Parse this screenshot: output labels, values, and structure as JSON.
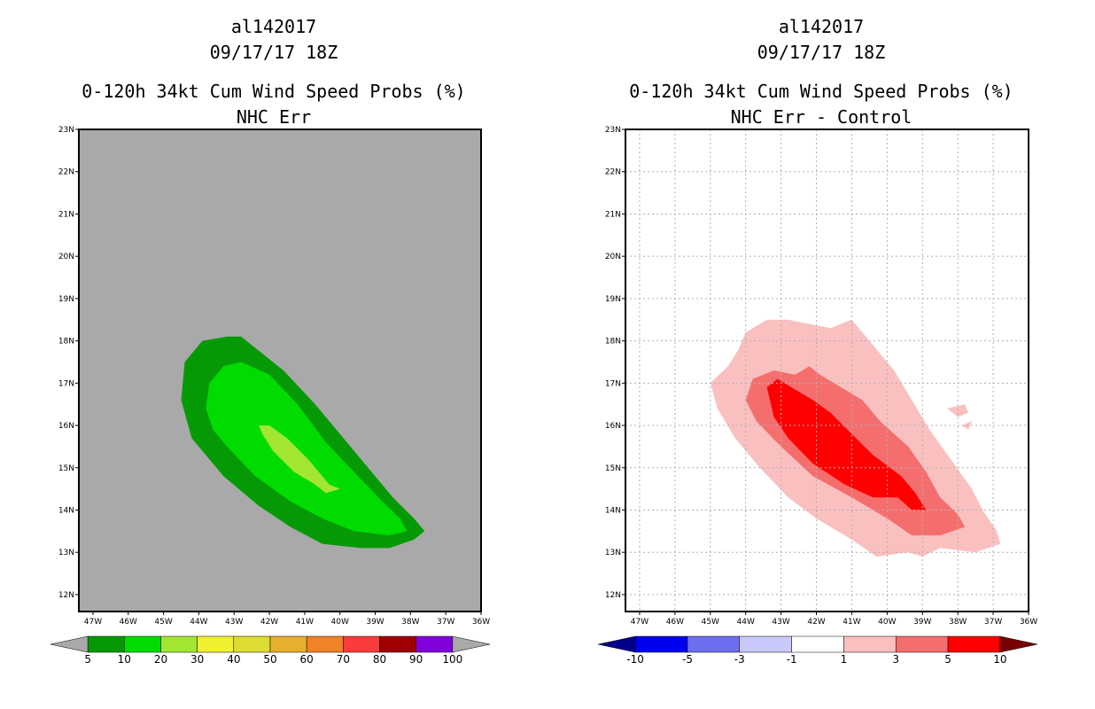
{
  "chart_data": [
    {
      "type": "filled-contour-map",
      "storm_id": "al142017",
      "datetime": "09/17/17 18Z",
      "title": "0-120h 34kt Cum Wind Speed Probs (%)",
      "subtitle": "NHC Err",
      "x_ticks": [
        "47W",
        "46W",
        "45W",
        "44W",
        "43W",
        "42W",
        "41W",
        "40W",
        "39W",
        "38W",
        "37W",
        "36W"
      ],
      "y_ticks": [
        "23N",
        "22N",
        "21N",
        "20N",
        "19N",
        "18N",
        "17N",
        "16N",
        "15N",
        "14N",
        "13N",
        "12N"
      ],
      "lon_range": [
        -47.4,
        -36.0
      ],
      "lat_range": [
        11.6,
        23.0
      ],
      "gridlines": false,
      "background_color": "#a9a9a9",
      "levels": [
        "5",
        "10",
        "20",
        "30",
        "40",
        "50",
        "60",
        "70",
        "80",
        "90",
        "100"
      ],
      "level_colors": [
        "#a9a9a9",
        "#059a05",
        "#00dc00",
        "#a2e632",
        "#f0f032",
        "#dcdc32",
        "#e6af2d",
        "#f08228",
        "#fa3c3c",
        "#a00000",
        "#8200dc",
        "#a9a9a9"
      ],
      "contours": [
        {
          "level": 5,
          "polygon": [
            [
              -44.5,
              16.6
            ],
            [
              -44.4,
              17.5
            ],
            [
              -43.9,
              18.0
            ],
            [
              -43.2,
              18.1
            ],
            [
              -42.8,
              18.1
            ],
            [
              -41.6,
              17.3
            ],
            [
              -40.7,
              16.5
            ],
            [
              -39.6,
              15.4
            ],
            [
              -38.5,
              14.3
            ],
            [
              -37.9,
              13.8
            ],
            [
              -37.6,
              13.5
            ],
            [
              -37.9,
              13.3
            ],
            [
              -38.6,
              13.1
            ],
            [
              -39.4,
              13.1
            ],
            [
              -40.5,
              13.2
            ],
            [
              -41.4,
              13.6
            ],
            [
              -42.3,
              14.1
            ],
            [
              -43.3,
              14.8
            ],
            [
              -44.2,
              15.7
            ]
          ]
        },
        {
          "level": 10,
          "polygon": [
            [
              -43.8,
              16.4
            ],
            [
              -43.7,
              17.0
            ],
            [
              -43.3,
              17.4
            ],
            [
              -42.8,
              17.5
            ],
            [
              -42.0,
              17.2
            ],
            [
              -41.2,
              16.5
            ],
            [
              -40.4,
              15.6
            ],
            [
              -39.6,
              14.9
            ],
            [
              -38.8,
              14.2
            ],
            [
              -38.3,
              13.8
            ],
            [
              -38.1,
              13.5
            ],
            [
              -38.6,
              13.4
            ],
            [
              -39.6,
              13.5
            ],
            [
              -40.5,
              13.8
            ],
            [
              -41.4,
              14.2
            ],
            [
              -42.4,
              14.8
            ],
            [
              -43.2,
              15.5
            ],
            [
              -43.6,
              15.9
            ]
          ]
        },
        {
          "level": 20,
          "polygon": [
            [
              -42.3,
              16.0
            ],
            [
              -42.0,
              16.0
            ],
            [
              -41.5,
              15.7
            ],
            [
              -40.9,
              15.2
            ],
            [
              -40.6,
              14.9
            ],
            [
              -40.3,
              14.6
            ],
            [
              -40.0,
              14.5
            ],
            [
              -40.4,
              14.4
            ],
            [
              -40.7,
              14.6
            ],
            [
              -41.3,
              14.9
            ],
            [
              -41.9,
              15.4
            ],
            [
              -42.2,
              15.8
            ]
          ]
        }
      ],
      "colorbar_labels": [
        "5",
        "10",
        "20",
        "30",
        "40",
        "50",
        "60",
        "70",
        "80",
        "90",
        "100"
      ]
    },
    {
      "type": "filled-contour-map",
      "storm_id": "al142017",
      "datetime": "09/17/17 18Z",
      "title": "0-120h 34kt Cum Wind Speed Probs (%)",
      "subtitle": "NHC Err - Control",
      "x_ticks": [
        "47W",
        "46W",
        "45W",
        "44W",
        "43W",
        "42W",
        "41W",
        "40W",
        "39W",
        "38W",
        "37W",
        "36W"
      ],
      "y_ticks": [
        "23N",
        "22N",
        "21N",
        "20N",
        "19N",
        "18N",
        "17N",
        "16N",
        "15N",
        "14N",
        "13N",
        "12N"
      ],
      "lon_range": [
        -47.4,
        -36.0
      ],
      "lat_range": [
        11.6,
        23.0
      ],
      "gridlines": true,
      "background_color": "#ffffff",
      "levels": [
        "-10",
        "-5",
        "-3",
        "-1",
        "1",
        "3",
        "5",
        "10"
      ],
      "level_colors": [
        "#00008c",
        "#0000f0",
        "#6e6ef0",
        "#c8c8fa",
        "#ffffff",
        "#fac0c0",
        "#f56e6e",
        "#ff0000",
        "#780000"
      ],
      "contours": [
        {
          "level": 1,
          "polygon": [
            [
              -45.0,
              17.0
            ],
            [
              -44.5,
              17.4
            ],
            [
              -44.2,
              17.8
            ],
            [
              -44.0,
              18.2
            ],
            [
              -43.4,
              18.5
            ],
            [
              -42.8,
              18.5
            ],
            [
              -41.6,
              18.3
            ],
            [
              -41.0,
              18.5
            ],
            [
              -40.5,
              18.0
            ],
            [
              -39.8,
              17.3
            ],
            [
              -39.3,
              16.6
            ],
            [
              -38.8,
              15.9
            ],
            [
              -38.2,
              15.2
            ],
            [
              -37.6,
              14.5
            ],
            [
              -37.3,
              14.0
            ],
            [
              -36.9,
              13.5
            ],
            [
              -36.8,
              13.2
            ],
            [
              -37.5,
              13.0
            ],
            [
              -38.5,
              13.1
            ],
            [
              -39.0,
              12.9
            ],
            [
              -39.4,
              13.0
            ],
            [
              -40.3,
              12.9
            ],
            [
              -41.0,
              13.3
            ],
            [
              -42.0,
              13.8
            ],
            [
              -42.8,
              14.3
            ],
            [
              -43.6,
              15.0
            ],
            [
              -44.3,
              15.7
            ],
            [
              -44.8,
              16.4
            ]
          ]
        },
        {
          "level": 1,
          "polygon": [
            [
              -38.3,
              16.4
            ],
            [
              -37.8,
              16.5
            ],
            [
              -37.7,
              16.3
            ],
            [
              -38.0,
              16.2
            ]
          ]
        },
        {
          "level": 1,
          "polygon": [
            [
              -37.9,
              16.0
            ],
            [
              -37.6,
              16.1
            ],
            [
              -37.7,
              15.9
            ]
          ]
        },
        {
          "level": 3,
          "polygon": [
            [
              -44.0,
              16.6
            ],
            [
              -43.8,
              17.1
            ],
            [
              -43.2,
              17.3
            ],
            [
              -42.6,
              17.2
            ],
            [
              -42.2,
              17.4
            ],
            [
              -41.9,
              17.2
            ],
            [
              -41.3,
              16.9
            ],
            [
              -40.7,
              16.6
            ],
            [
              -40.2,
              16.1
            ],
            [
              -39.4,
              15.5
            ],
            [
              -38.9,
              14.9
            ],
            [
              -38.5,
              14.3
            ],
            [
              -38.0,
              13.9
            ],
            [
              -37.8,
              13.6
            ],
            [
              -38.5,
              13.4
            ],
            [
              -39.3,
              13.4
            ],
            [
              -40.0,
              13.8
            ],
            [
              -41.0,
              14.3
            ],
            [
              -42.1,
              14.8
            ],
            [
              -43.0,
              15.5
            ],
            [
              -43.7,
              16.1
            ]
          ]
        },
        {
          "level": 5,
          "polygon": [
            [
              -43.4,
              16.9
            ],
            [
              -43.1,
              17.1
            ],
            [
              -42.7,
              16.9
            ],
            [
              -42.1,
              16.6
            ],
            [
              -41.6,
              16.3
            ],
            [
              -41.0,
              15.8
            ],
            [
              -40.4,
              15.3
            ],
            [
              -39.6,
              14.8
            ],
            [
              -39.2,
              14.4
            ],
            [
              -38.9,
              14.0
            ],
            [
              -39.3,
              14.0
            ],
            [
              -39.7,
              14.3
            ],
            [
              -40.4,
              14.3
            ],
            [
              -41.2,
              14.6
            ],
            [
              -42.1,
              15.1
            ],
            [
              -42.8,
              15.7
            ],
            [
              -43.2,
              16.2
            ]
          ]
        }
      ],
      "colorbar_labels": [
        "-10",
        "-5",
        "-3",
        "-1",
        "1",
        "3",
        "5",
        "10"
      ]
    }
  ]
}
